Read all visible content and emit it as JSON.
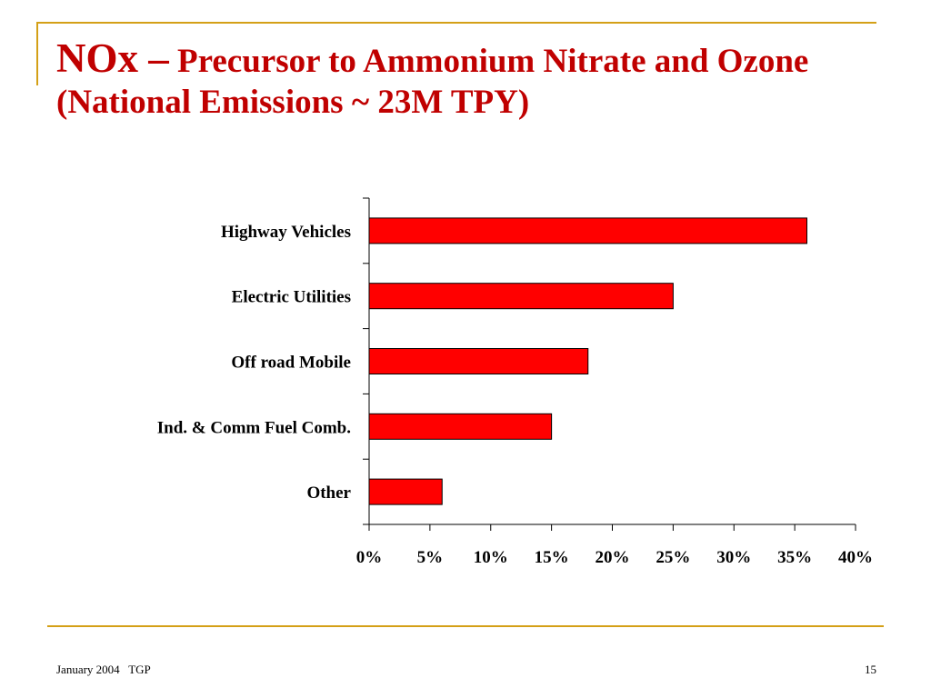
{
  "title": {
    "main": "NOx –",
    "rest": " Precursor to Ammonium Nitrate and Ozone",
    "line2": "(National Emissions ~ 23M TPY)"
  },
  "footer": {
    "left": "January 2004   TGP",
    "page": "15"
  },
  "colors": {
    "accent_rule": "#d4a017",
    "title": "#c00000",
    "bar": "#ff0000"
  },
  "chart_data": {
    "type": "bar",
    "orientation": "horizontal",
    "categories": [
      "Highway Vehicles",
      "Electric Utilities",
      "Off road Mobile",
      "Ind. & Comm Fuel Comb.",
      "Other"
    ],
    "values": [
      36,
      25,
      18,
      15,
      6
    ],
    "xlim": [
      0,
      40
    ],
    "xticks": [
      0,
      5,
      10,
      15,
      20,
      25,
      30,
      35,
      40
    ],
    "tick_labels": [
      "0%",
      "5%",
      "10%",
      "15%",
      "20%",
      "25%",
      "30%",
      "35%",
      "40%"
    ],
    "grid": false,
    "legend": "none"
  }
}
